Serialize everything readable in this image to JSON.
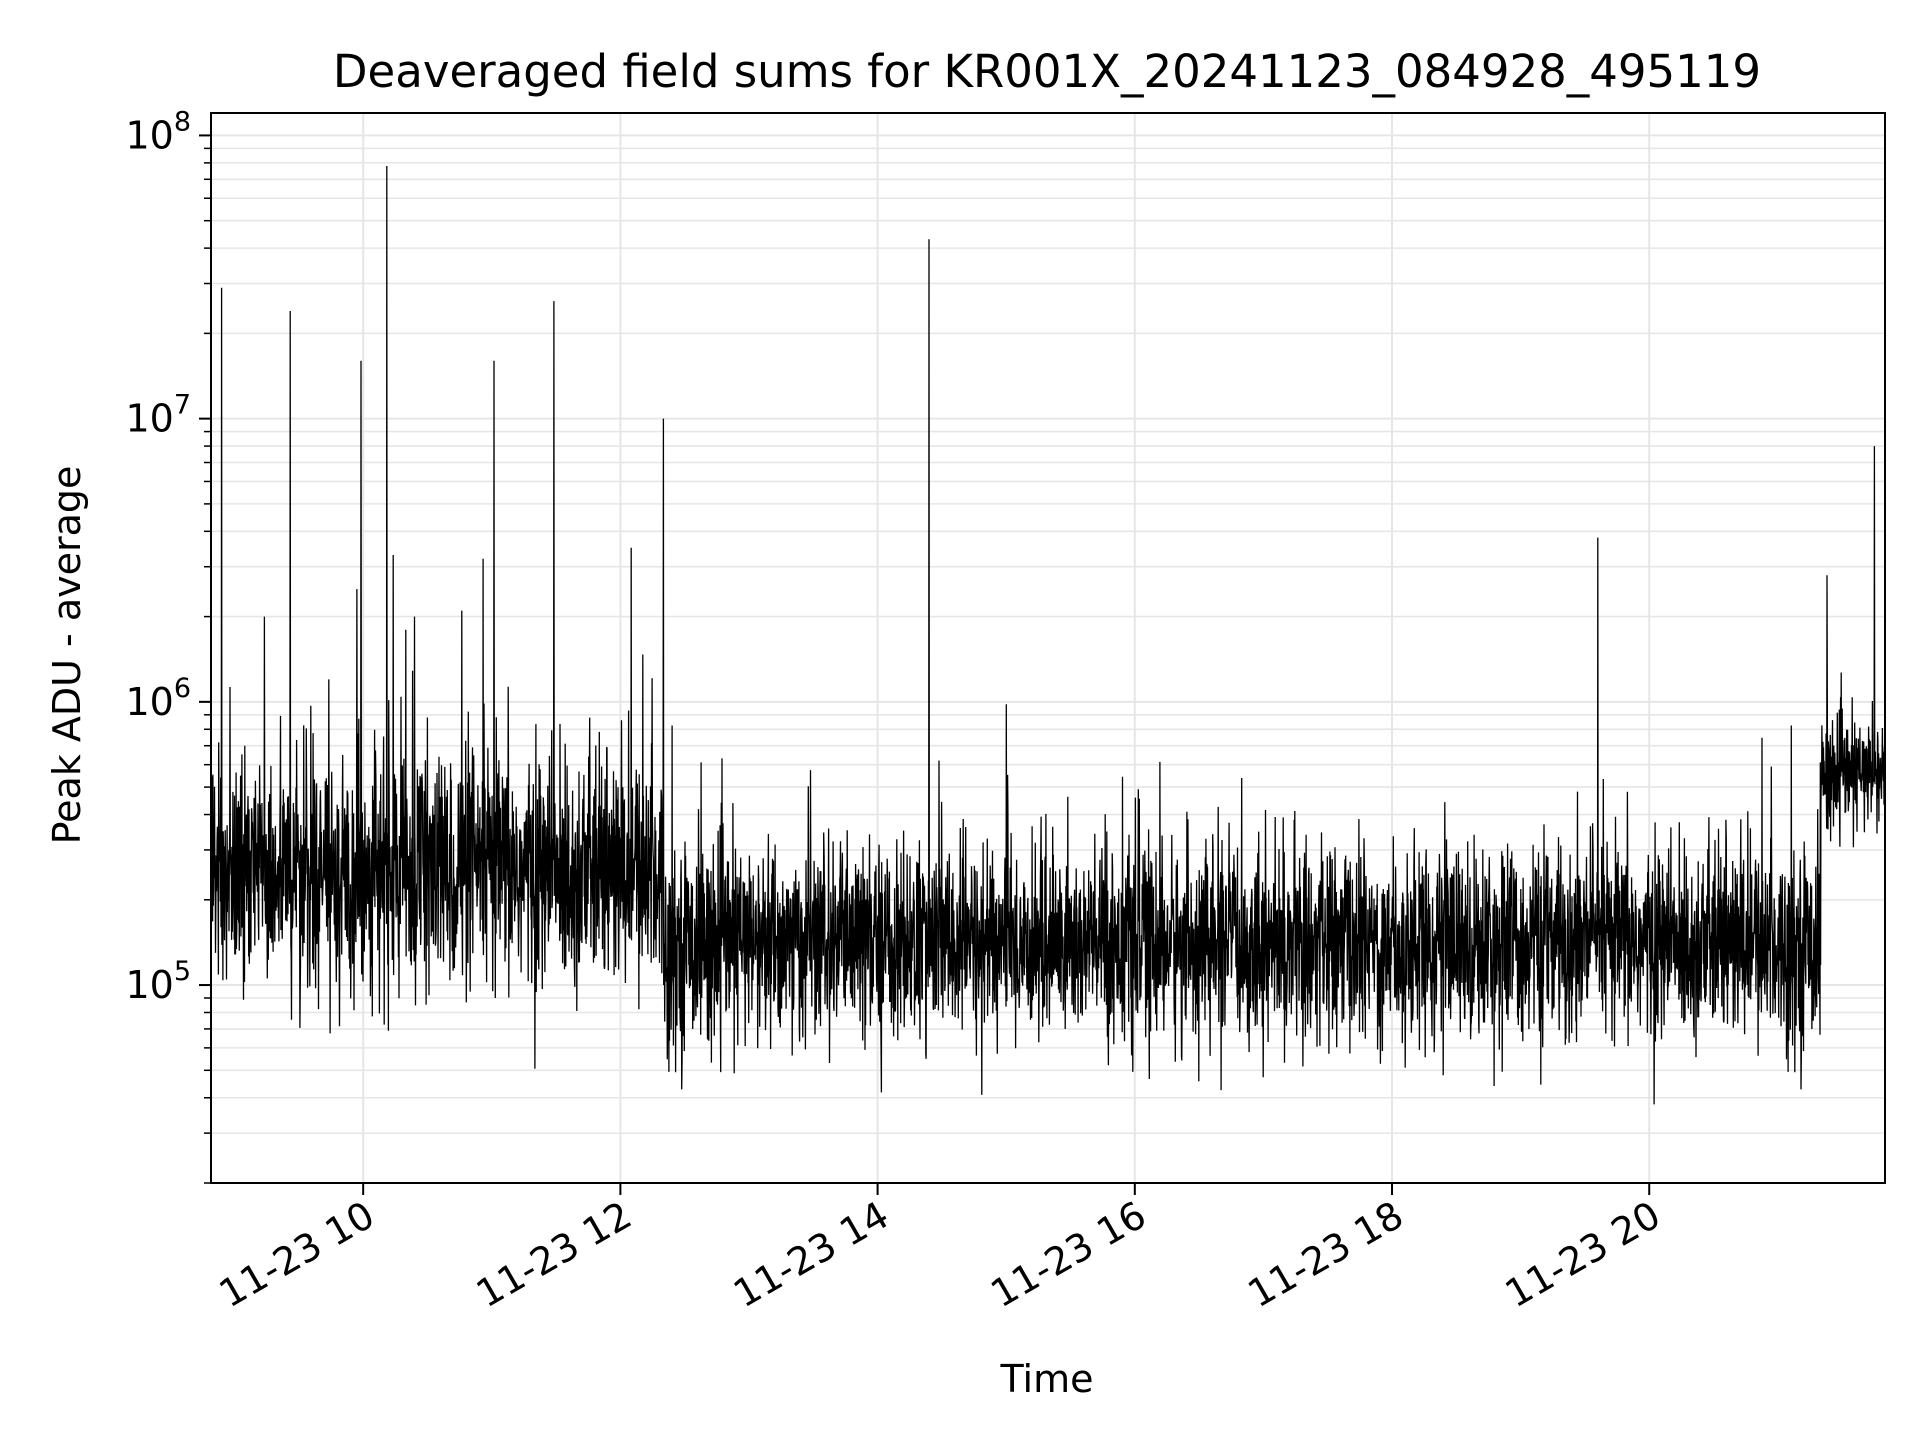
{
  "chart_data": {
    "type": "line",
    "title": "Deaveraged field sums for KR001X_20241123_084928_495119",
    "xlabel": "Time",
    "ylabel": "Peak ADU - average",
    "yscale": "log",
    "ylim": [
      20000,
      120000000
    ],
    "xlim": [
      "2024-11-23 08:49",
      "2024-11-23 21:50"
    ],
    "grid": true,
    "line_color": "#000000",
    "grid_color": "#e6e6e6",
    "x_ticks": [
      {
        "x": "2024-11-23 10:00",
        "label": "11-23 10"
      },
      {
        "x": "2024-11-23 12:00",
        "label": "11-23 12"
      },
      {
        "x": "2024-11-23 14:00",
        "label": "11-23 14"
      },
      {
        "x": "2024-11-23 16:00",
        "label": "11-23 16"
      },
      {
        "x": "2024-11-23 18:00",
        "label": "11-23 18"
      },
      {
        "x": "2024-11-23 20:00",
        "label": "11-23 20"
      }
    ],
    "y_ticks": [
      {
        "value": 100000,
        "base": "10",
        "exp": "5"
      },
      {
        "value": 1000000,
        "base": "10",
        "exp": "6"
      },
      {
        "value": 10000000,
        "base": "10",
        "exp": "7"
      },
      {
        "value": 100000000,
        "base": "10",
        "exp": "8"
      }
    ],
    "series": [
      {
        "baseline_segments": [
          {
            "from": "2024-11-23 08:49",
            "to": "2024-11-23 12:20",
            "median": 250000,
            "spread_decades": 0.55
          },
          {
            "from": "2024-11-23 12:20",
            "to": "2024-11-23 21:20",
            "median": 140000,
            "spread_decades": 0.45
          },
          {
            "from": "2024-11-23 21:20",
            "to": "2024-11-23 21:50",
            "median": 550000,
            "spread_decades": 0.25
          }
        ],
        "spikes": [
          {
            "x": "2024-11-23 08:54",
            "y": 29000000
          },
          {
            "x": "2024-11-23 09:26",
            "y": 24000000
          },
          {
            "x": "2024-11-23 09:59",
            "y": 16000000
          },
          {
            "x": "2024-11-23 10:11",
            "y": 78000000
          },
          {
            "x": "2024-11-23 11:01",
            "y": 16000000
          },
          {
            "x": "2024-11-23 11:29",
            "y": 26000000
          },
          {
            "x": "2024-11-23 12:05",
            "y": 3500000
          },
          {
            "x": "2024-11-23 12:20",
            "y": 10000000
          },
          {
            "x": "2024-11-23 14:24",
            "y": 43000000
          },
          {
            "x": "2024-11-23 15:00",
            "y": 980000
          },
          {
            "x": "2024-11-23 19:36",
            "y": 3800000
          },
          {
            "x": "2024-11-23 21:23",
            "y": 2800000
          },
          {
            "x": "2024-11-23 21:45",
            "y": 8000000
          },
          {
            "x": "2024-11-23 09:44",
            "y": 1200000
          },
          {
            "x": "2024-11-23 09:57",
            "y": 2500000
          },
          {
            "x": "2024-11-23 10:14",
            "y": 3300000
          },
          {
            "x": "2024-11-23 10:24",
            "y": 2000000
          },
          {
            "x": "2024-11-23 10:46",
            "y": 2100000
          },
          {
            "x": "2024-11-23 10:56",
            "y": 3200000
          },
          {
            "x": "2024-11-23 09:14",
            "y": 2000000
          }
        ]
      }
    ]
  }
}
